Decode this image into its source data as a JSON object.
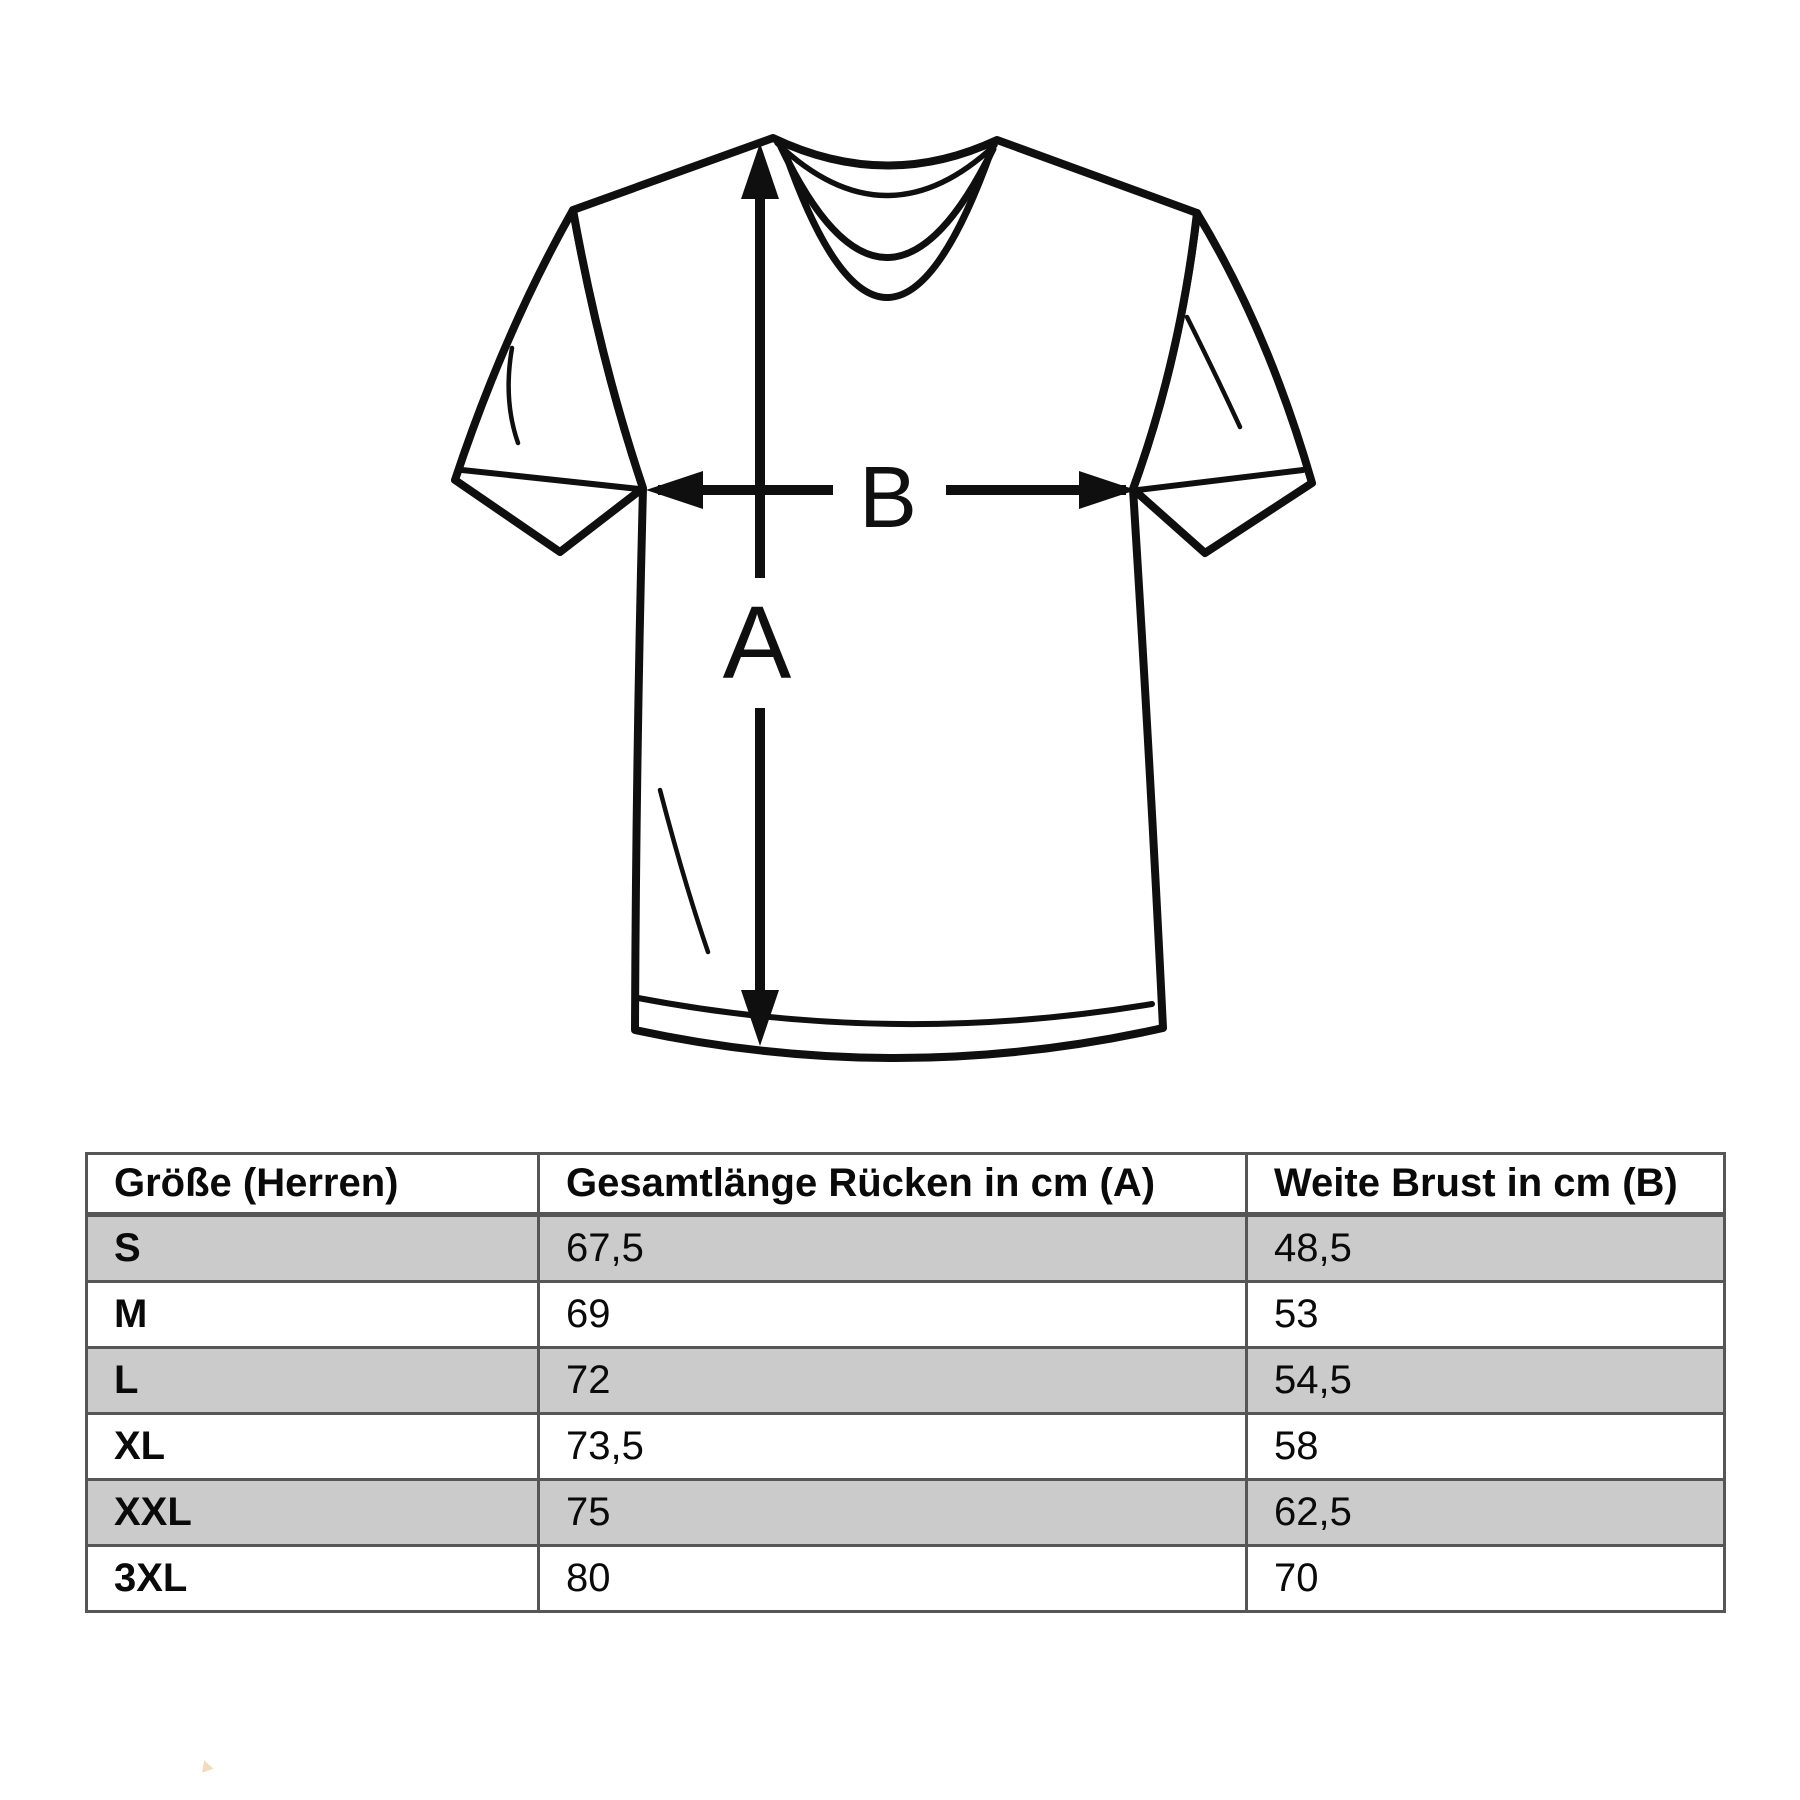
{
  "diagram": {
    "label_a": "A",
    "label_b": "B"
  },
  "table": {
    "columns": [
      "Größe (Herren)",
      "Gesamtlänge Rücken in cm (A)",
      "Weite Brust in cm (B)"
    ],
    "rows": [
      {
        "size": "S",
        "length_cm": "67,5",
        "chest_cm": "48,5",
        "shaded": true
      },
      {
        "size": "M",
        "length_cm": "69",
        "chest_cm": "53",
        "shaded": false
      },
      {
        "size": "L",
        "length_cm": "72",
        "chest_cm": "54,5",
        "shaded": true
      },
      {
        "size": "XL",
        "length_cm": "73,5",
        "chest_cm": "58",
        "shaded": false
      },
      {
        "size": "XXL",
        "length_cm": "75",
        "chest_cm": "62,5",
        "shaded": true
      },
      {
        "size": "3XL",
        "length_cm": "80",
        "chest_cm": "70",
        "shaded": false
      }
    ]
  },
  "colors": {
    "ink": "#0f0f0f",
    "table_border": "#565656",
    "row_shaded": "#cbcbcb",
    "background": "#ffffff"
  }
}
